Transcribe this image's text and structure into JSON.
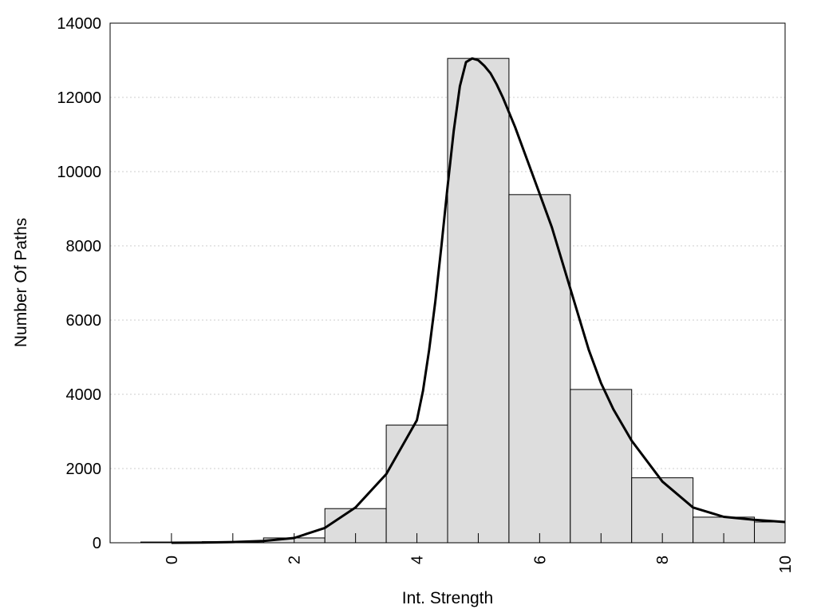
{
  "chart_data": {
    "type": "bar",
    "xlabel": "Int. Strength",
    "ylabel": "Number Of Paths",
    "xlim": [
      -1,
      10
    ],
    "ylim": [
      0,
      14000
    ],
    "x_ticks": [
      "0",
      "2",
      "4",
      "6",
      "8",
      "10"
    ],
    "y_ticks": [
      "0",
      "2000",
      "4000",
      "6000",
      "8000",
      "10000",
      "12000",
      "14000"
    ],
    "grid": "horizontal-dotted",
    "colors": {
      "bar_fill": "#dddddd",
      "bar_edge": "#000000",
      "line": "#000000",
      "grid": "#cccccc"
    },
    "bins": [
      {
        "center": 0,
        "value": 20
      },
      {
        "center": 1,
        "value": 30
      },
      {
        "center": 2,
        "value": 130
      },
      {
        "center": 3,
        "value": 920
      },
      {
        "center": 4,
        "value": 3170
      },
      {
        "center": 5,
        "value": 13050
      },
      {
        "center": 6,
        "value": 9380
      },
      {
        "center": 7,
        "value": 4130
      },
      {
        "center": 8,
        "value": 1750
      },
      {
        "center": 9,
        "value": 690
      },
      {
        "center": 10,
        "value": 560
      }
    ],
    "curve": {
      "x": [
        0,
        0.5,
        1,
        1.5,
        2,
        2.5,
        3,
        3.5,
        4,
        4.1,
        4.2,
        4.3,
        4.4,
        4.5,
        4.6,
        4.7,
        4.8,
        4.9,
        5,
        5.1,
        5.2,
        5.3,
        5.4,
        5.5,
        5.6,
        5.8,
        6,
        6.2,
        6.4,
        6.6,
        6.8,
        7,
        7.2,
        7.5,
        8,
        8.5,
        9,
        9.5,
        10
      ],
      "y": [
        0,
        5,
        20,
        50,
        130,
        400,
        950,
        1850,
        3300,
        4100,
        5200,
        6500,
        8000,
        9600,
        11100,
        12300,
        12950,
        13050,
        13000,
        12850,
        12650,
        12350,
        12000,
        11600,
        11200,
        10300,
        9400,
        8500,
        7400,
        6300,
        5200,
        4300,
        3600,
        2750,
        1650,
        950,
        700,
        620,
        560
      ]
    }
  }
}
